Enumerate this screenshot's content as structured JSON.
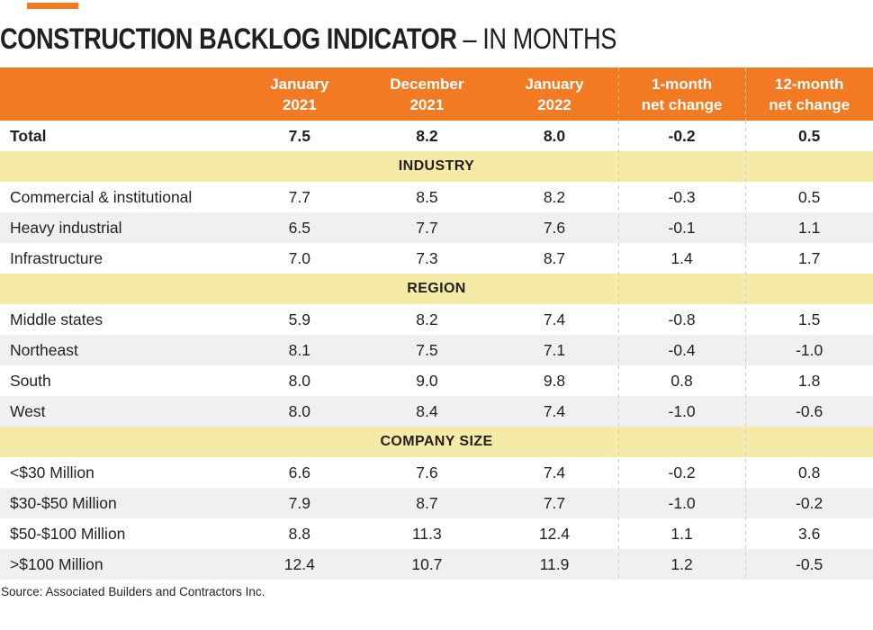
{
  "page": {
    "title_bold": "CONSTRUCTION BACKLOG INDICATOR",
    "title_light": "– IN MONTHS",
    "source": "Source: Associated Builders and Contractors Inc."
  },
  "colors": {
    "orange": "#F27A22",
    "band_yellow": "#F5EBA6",
    "row_gray": "#F0F0F0",
    "text_dark": "#231F20",
    "header_text": "#FFFFFF",
    "dash_gray": "#CFCFCF"
  },
  "table": {
    "header": {
      "cols": [
        {
          "line1": "January",
          "line2": "2021"
        },
        {
          "line1": "December",
          "line2": "2021"
        },
        {
          "line1": "January",
          "line2": "2022"
        },
        {
          "line1": "1-month",
          "line2": "net change"
        },
        {
          "line1": "12-month",
          "line2": "net change"
        }
      ]
    },
    "total": {
      "label": "Total",
      "values": [
        "7.5",
        "8.2",
        "8.0",
        "-0.2",
        "0.5"
      ]
    },
    "sections": [
      {
        "title": "INDUSTRY",
        "rows": [
          {
            "label": "Commercial & institutional",
            "values": [
              "7.7",
              "8.5",
              "8.2",
              "-0.3",
              "0.5"
            ]
          },
          {
            "label": "Heavy industrial",
            "values": [
              "6.5",
              "7.7",
              "7.6",
              "-0.1",
              "1.1"
            ]
          },
          {
            "label": "Infrastructure",
            "values": [
              "7.0",
              "7.3",
              "8.7",
              "1.4",
              "1.7"
            ]
          }
        ]
      },
      {
        "title": "REGION",
        "rows": [
          {
            "label": "Middle states",
            "values": [
              "5.9",
              "8.2",
              "7.4",
              "-0.8",
              "1.5"
            ]
          },
          {
            "label": "Northeast",
            "values": [
              "8.1",
              "7.5",
              "7.1",
              "-0.4",
              "-1.0"
            ]
          },
          {
            "label": "South",
            "values": [
              "8.0",
              "9.0",
              "9.8",
              "0.8",
              "1.8"
            ]
          },
          {
            "label": "West",
            "values": [
              "8.0",
              "8.4",
              "7.4",
              "-1.0",
              "-0.6"
            ]
          }
        ]
      },
      {
        "title": "COMPANY SIZE",
        "rows": [
          {
            "label": "<$30 Million",
            "values": [
              "6.6",
              "7.6",
              "7.4",
              "-0.2",
              "0.8"
            ]
          },
          {
            "label": "$30-$50 Million",
            "values": [
              "7.9",
              "8.7",
              "7.7",
              "-1.0",
              "-0.2"
            ]
          },
          {
            "label": "$50-$100 Million",
            "values": [
              "8.8",
              "11.3",
              "12.4",
              "1.1",
              "3.6"
            ]
          },
          {
            "label": ">$100 Million",
            "values": [
              "12.4",
              "10.7",
              "11.9",
              "1.2",
              "-0.5"
            ]
          }
        ]
      }
    ]
  },
  "chart_data": {
    "type": "table",
    "title": "CONSTRUCTION BACKLOG INDICATOR – IN MONTHS",
    "columns": [
      "January 2021",
      "December 2021",
      "January 2022",
      "1-month net change",
      "12-month net change"
    ],
    "rows": [
      {
        "group": "",
        "label": "Total",
        "values": [
          7.5,
          8.2,
          8.0,
          -0.2,
          0.5
        ]
      },
      {
        "group": "INDUSTRY",
        "label": "Commercial & institutional",
        "values": [
          7.7,
          8.5,
          8.2,
          -0.3,
          0.5
        ]
      },
      {
        "group": "INDUSTRY",
        "label": "Heavy industrial",
        "values": [
          6.5,
          7.7,
          7.6,
          -0.1,
          1.1
        ]
      },
      {
        "group": "INDUSTRY",
        "label": "Infrastructure",
        "values": [
          7.0,
          7.3,
          8.7,
          1.4,
          1.7
        ]
      },
      {
        "group": "REGION",
        "label": "Middle states",
        "values": [
          5.9,
          8.2,
          7.4,
          -0.8,
          1.5
        ]
      },
      {
        "group": "REGION",
        "label": "Northeast",
        "values": [
          8.1,
          7.5,
          7.1,
          -0.4,
          -1.0
        ]
      },
      {
        "group": "REGION",
        "label": "South",
        "values": [
          8.0,
          9.0,
          9.8,
          0.8,
          1.8
        ]
      },
      {
        "group": "REGION",
        "label": "West",
        "values": [
          8.0,
          8.4,
          7.4,
          -1.0,
          -0.6
        ]
      },
      {
        "group": "COMPANY SIZE",
        "label": "<$30 Million",
        "values": [
          6.6,
          7.6,
          7.4,
          -0.2,
          0.8
        ]
      },
      {
        "group": "COMPANY SIZE",
        "label": "$30-$50 Million",
        "values": [
          7.9,
          8.7,
          7.7,
          -1.0,
          -0.2
        ]
      },
      {
        "group": "COMPANY SIZE",
        "label": "$50-$100 Million",
        "values": [
          8.8,
          11.3,
          12.4,
          1.1,
          3.6
        ]
      },
      {
        "group": "COMPANY SIZE",
        "label": ">$100 Million",
        "values": [
          12.4,
          10.7,
          11.9,
          1.2,
          -0.5
        ]
      }
    ],
    "source": "Source: Associated Builders and Contractors Inc.",
    "layout": {
      "section_band_color": "#F5EBA6",
      "header_color": "#F27A22",
      "alt_row_color": "#F0F0F0"
    }
  }
}
